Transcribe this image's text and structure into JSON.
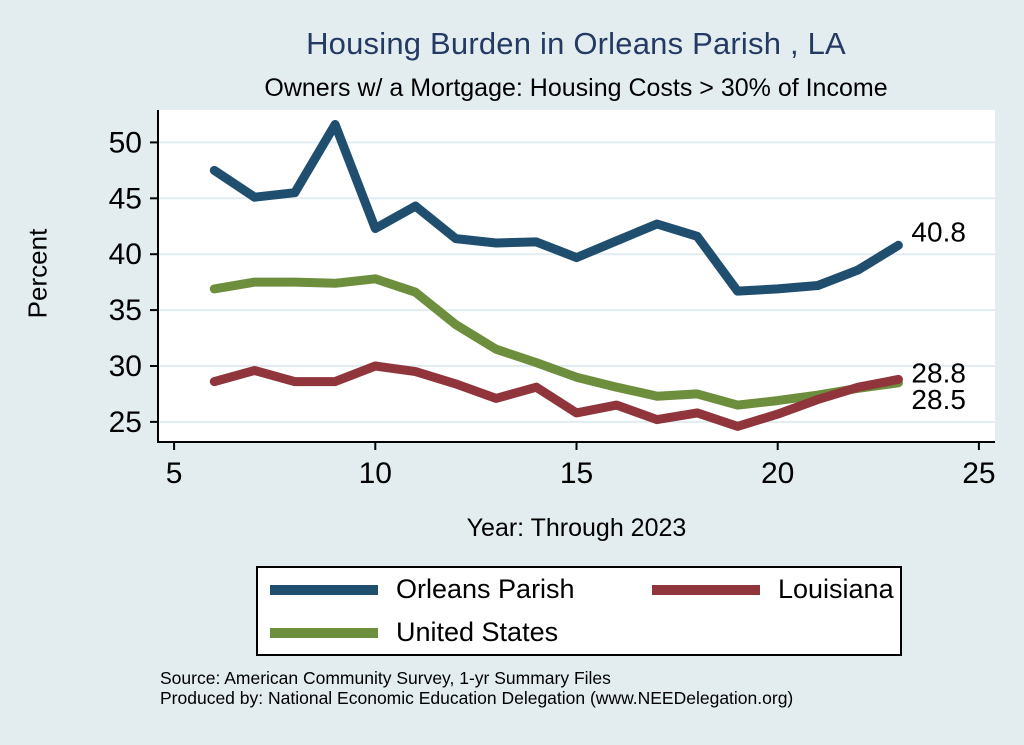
{
  "chart_data": {
    "type": "line",
    "title": "Housing Burden in Orleans Parish , LA",
    "subtitle": "Owners w/ a Mortgage: Housing Costs > 30% of Income",
    "xlabel": "Year: Through 2023",
    "ylabel": "Percent",
    "x": [
      6,
      7,
      8,
      9,
      10,
      11,
      12,
      13,
      14,
      15,
      16,
      17,
      18,
      19,
      20,
      21,
      22,
      23
    ],
    "x_ticks": [
      5,
      10,
      15,
      20,
      25
    ],
    "y_ticks": [
      25,
      30,
      35,
      40,
      45,
      50
    ],
    "xlim": [
      4.6,
      25.4
    ],
    "ylim": [
      23.2,
      52.9
    ],
    "grid": "horizontal",
    "legend_position": "bottom",
    "series": [
      {
        "name": "Orleans Parish",
        "color": "#1f4e6f",
        "end_label": "40.8",
        "values": [
          47.5,
          45.1,
          45.5,
          51.6,
          42.3,
          44.3,
          41.4,
          41.0,
          41.1,
          39.7,
          41.2,
          42.7,
          41.6,
          36.7,
          36.9,
          37.2,
          38.6,
          40.8
        ]
      },
      {
        "name": "Louisiana",
        "color": "#90353b",
        "end_label": "28.8",
        "values": [
          28.6,
          29.6,
          28.6,
          28.6,
          30.0,
          29.5,
          28.4,
          27.1,
          28.1,
          25.8,
          26.5,
          25.2,
          25.8,
          24.6,
          25.7,
          27.0,
          28.1,
          28.8
        ]
      },
      {
        "name": "United States",
        "color": "#6d8f3d",
        "end_label": "28.5",
        "values": [
          36.9,
          37.5,
          37.5,
          37.4,
          37.8,
          36.6,
          33.7,
          31.5,
          30.3,
          29.0,
          28.1,
          27.3,
          27.5,
          26.5,
          26.9,
          27.4,
          28.0,
          28.5
        ]
      }
    ],
    "colors": {
      "background": "#e3edf0",
      "plot_background": "#ffffff",
      "gridline": "#e1edf3",
      "axis": "#000000",
      "title": "#243a62"
    }
  },
  "legend": {
    "items": [
      "Orleans Parish",
      "Louisiana",
      "United States"
    ]
  },
  "notes": {
    "source": "Source: American Community Survey, 1-yr Summary Files",
    "produced_by": "Produced by: National Economic Education Delegation (www.NEEDelegation.org)"
  }
}
